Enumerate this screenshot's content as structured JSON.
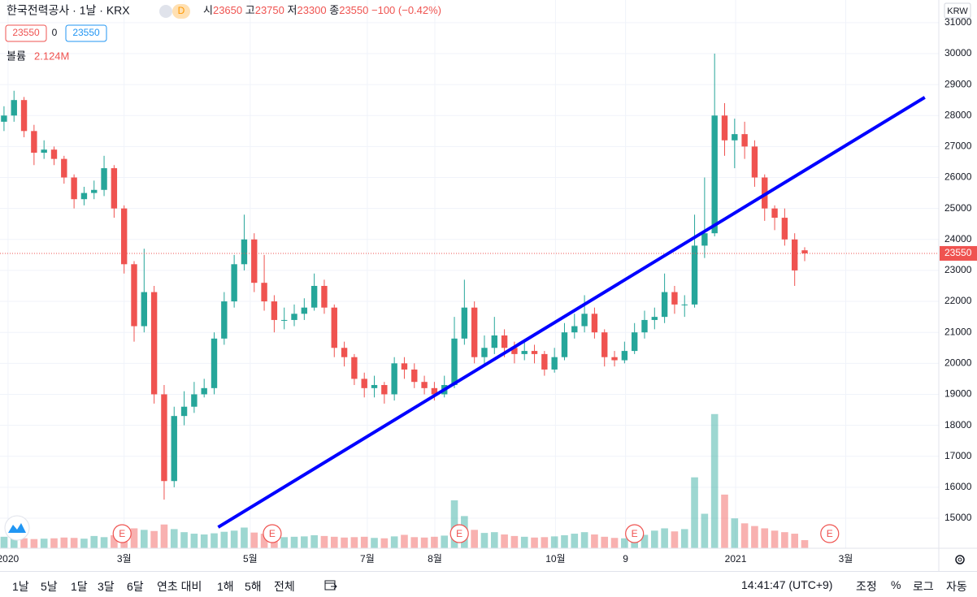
{
  "chart_data": {
    "type": "candlestick",
    "title": "한국전력공사 · 1날 · KRX",
    "interval_badge": "D",
    "ohlc_labels": [
      "시",
      "고",
      "저",
      "종"
    ],
    "ohlc": [
      23650,
      23750,
      23300,
      23550
    ],
    "change": "−100 (−0.42%)",
    "bid": 23550,
    "spread": 0,
    "ask": 23550,
    "volume_label": "볼륨",
    "volume_value": "2.124M",
    "currency": "KRW",
    "last_price": 23550,
    "up_color": "#26a69a",
    "down_color": "#ef5350",
    "grid": true,
    "xlim": [
      -0.4,
      93.4
    ],
    "ylim": [
      14030,
      31730
    ],
    "vlim": [
      0,
      143000000
    ],
    "yticks": [
      15000,
      16000,
      17000,
      18000,
      19000,
      20000,
      21000,
      22000,
      23000,
      24000,
      25000,
      26000,
      27000,
      28000,
      29000,
      30000,
      31000
    ],
    "xticks": [
      {
        "value": 0.4,
        "label": "2020"
      },
      {
        "value": 12.0,
        "label": "3월"
      },
      {
        "value": 24.6,
        "label": "5월"
      },
      {
        "value": 36.3,
        "label": "7월"
      },
      {
        "value": 43.05,
        "label": "8월"
      },
      {
        "value": 55.1,
        "label": "10월"
      },
      {
        "value": 62.1,
        "label": "9"
      },
      {
        "value": 73.1,
        "label": "2021"
      },
      {
        "value": 84.1,
        "label": "3월"
      }
    ],
    "x": [
      0,
      1,
      2,
      3,
      4,
      5,
      6,
      7,
      8,
      9,
      10,
      11,
      12,
      13,
      14,
      15,
      16,
      17,
      18,
      19,
      20,
      21,
      22,
      23,
      24,
      25,
      26,
      27,
      28,
      29,
      30,
      31,
      32,
      33,
      34,
      35,
      36,
      37,
      38,
      39,
      40,
      41,
      42,
      43,
      44,
      45,
      46,
      47,
      48,
      49,
      50,
      51,
      52,
      53,
      54,
      55,
      56,
      57,
      58,
      59,
      60,
      61,
      62,
      63,
      64,
      65,
      66,
      67,
      68,
      69,
      70,
      71,
      72,
      73,
      74,
      75,
      76,
      77,
      78,
      79,
      80
    ],
    "open": [
      27800,
      28000,
      28500,
      27500,
      26800,
      26900,
      26600,
      26000,
      25300,
      25500,
      25600,
      26300,
      25000,
      23200,
      21200,
      22300,
      19000,
      16200,
      18300,
      18600,
      19000,
      19200,
      20800,
      22000,
      23200,
      24000,
      22600,
      22000,
      21400,
      21400,
      21600,
      21800,
      22500,
      21800,
      20500,
      20200,
      19500,
      19200,
      19300,
      19000,
      20000,
      19800,
      19400,
      19200,
      19000,
      19300,
      20800,
      21800,
      20200,
      20500,
      20900,
      20500,
      20300,
      20400,
      20300,
      19800,
      20200,
      21000,
      21200,
      21600,
      21000,
      20200,
      20100,
      20400,
      21000,
      21400,
      21500,
      22300,
      21900,
      21900,
      23800,
      24200,
      28000,
      27200,
      27400,
      27000,
      26000,
      25000,
      24700,
      24000,
      23650
    ],
    "high": [
      28300,
      28800,
      28600,
      27700,
      27200,
      27000,
      26700,
      26100,
      25700,
      25900,
      26700,
      26400,
      25100,
      23300,
      23700,
      22500,
      19300,
      18600,
      19100,
      19400,
      19500,
      21000,
      22300,
      23500,
      24800,
      24200,
      23500,
      22200,
      21800,
      21900,
      22100,
      22900,
      22700,
      21900,
      20700,
      20300,
      19700,
      19600,
      19400,
      20200,
      20200,
      20000,
      19600,
      19400,
      19600,
      21500,
      22700,
      22000,
      20900,
      21500,
      21100,
      20700,
      20700,
      20600,
      20400,
      20500,
      21300,
      21600,
      22200,
      21800,
      21100,
      20400,
      20700,
      21300,
      21700,
      21800,
      22900,
      22500,
      22200,
      24800,
      26000,
      30000,
      28400,
      27900,
      27800,
      27200,
      26100,
      25100,
      25000,
      24200,
      23750
    ],
    "low": [
      27500,
      27800,
      27300,
      26400,
      26600,
      26400,
      25800,
      25000,
      25100,
      25300,
      25400,
      24700,
      22900,
      20700,
      21000,
      18700,
      15600,
      16000,
      18000,
      18400,
      18900,
      19000,
      20600,
      21800,
      23000,
      22300,
      21700,
      21000,
      21100,
      21200,
      21400,
      21700,
      21600,
      20200,
      19900,
      19300,
      18900,
      18900,
      18700,
      18800,
      19500,
      19200,
      19000,
      18800,
      18900,
      19200,
      20600,
      20000,
      19900,
      20300,
      20200,
      20000,
      20100,
      20000,
      19600,
      19700,
      20100,
      20800,
      21000,
      20800,
      19900,
      19900,
      20000,
      20300,
      20800,
      21100,
      21300,
      21600,
      21500,
      21800,
      23400,
      24100,
      26700,
      26300,
      26600,
      25700,
      24600,
      24300,
      23800,
      22500,
      23300
    ],
    "close": [
      28000,
      28500,
      27500,
      26800,
      26900,
      26600,
      26000,
      25300,
      25500,
      25600,
      26300,
      25000,
      23200,
      21200,
      22300,
      19000,
      16200,
      18300,
      18600,
      19000,
      19200,
      20800,
      22000,
      23200,
      24000,
      22600,
      22000,
      21400,
      21400,
      21600,
      21800,
      22500,
      21800,
      20500,
      20200,
      19500,
      19200,
      19300,
      19000,
      20000,
      19800,
      19400,
      19200,
      19000,
      19300,
      20800,
      21800,
      20200,
      20500,
      20900,
      20500,
      20300,
      20400,
      20300,
      19800,
      20200,
      21000,
      21200,
      21600,
      21000,
      20200,
      20100,
      20400,
      21000,
      21400,
      21500,
      22300,
      21900,
      21900,
      23800,
      24200,
      28000,
      27200,
      27400,
      27000,
      26000,
      25000,
      24700,
      24000,
      23000,
      23550
    ],
    "volume": [
      3000000,
      2800000,
      2600000,
      2400000,
      2500000,
      2600000,
      2800000,
      2700000,
      2500000,
      3200000,
      2900000,
      3400000,
      4200000,
      5200000,
      4800000,
      4500000,
      6200000,
      5000000,
      4200000,
      3800000,
      3600000,
      3900000,
      4300000,
      4600000,
      5400000,
      4100000,
      3800000,
      3300000,
      2900000,
      3000000,
      3100000,
      3400000,
      3200000,
      3000000,
      2800000,
      2900000,
      3000000,
      2700000,
      2600000,
      3100000,
      3500000,
      2900000,
      2800000,
      3000000,
      3300000,
      12500000,
      8400000,
      4800000,
      4000000,
      4200000,
      3600000,
      3200000,
      3000000,
      2800000,
      2900000,
      3100000,
      3400000,
      3800000,
      4200000,
      3600000,
      3000000,
      2700000,
      2600000,
      3200000,
      3500000,
      4600000,
      5200000,
      4400000,
      5000000,
      18500000,
      9000000,
      35000000,
      14000000,
      7800000,
      6500000,
      5800000,
      5200000,
      4600000,
      4200000,
      3800000,
      2124000
    ],
    "events": [
      {
        "x": 11.8,
        "label": "E"
      },
      {
        "x": 26.8,
        "label": "E"
      },
      {
        "x": 45.5,
        "label": "E"
      },
      {
        "x": 63.0,
        "label": "E"
      },
      {
        "x": 82.5,
        "label": "E"
      }
    ],
    "trendline": {
      "x": [
        21.4,
        92.0
      ],
      "y": [
        14711,
        28587
      ],
      "color": "#0000ff"
    }
  },
  "toolbar": {
    "ranges": [
      "1날",
      "5날",
      "1달",
      "3달",
      "6달",
      "연초 대비",
      "1해",
      "5해",
      "전체"
    ],
    "time": "14:41:47 (UTC+9)",
    "options": [
      "조정",
      "%",
      "로그",
      "자동"
    ]
  }
}
